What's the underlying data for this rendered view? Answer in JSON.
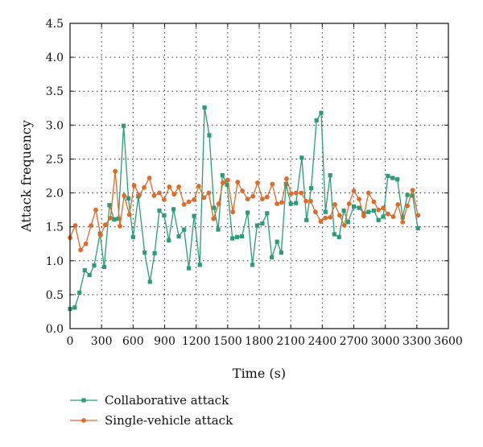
{
  "chart_data": {
    "type": "line",
    "xlabel": "Time (s)",
    "ylabel": "Attack frequency",
    "xlim": [
      0,
      3600
    ],
    "ylim": [
      0,
      4.5
    ],
    "x_ticks": [
      0,
      300,
      600,
      900,
      1200,
      1500,
      1800,
      2100,
      2400,
      2700,
      3000,
      3300,
      3600
    ],
    "y_ticks": [
      0.0,
      0.5,
      1.0,
      1.5,
      2.0,
      2.5,
      3.0,
      3.5,
      4.0,
      4.5
    ],
    "x_tick_labels": [
      "0",
      "300",
      "600",
      "900",
      "1200",
      "1500",
      "1800",
      "2100",
      "2400",
      "2700",
      "3000",
      "3300",
      "3600"
    ],
    "y_tick_labels": [
      "0.0",
      "0.5",
      "1.0",
      "1.5",
      "2.0",
      "2.5",
      "3.0",
      "3.5",
      "4.0",
      "4.5"
    ],
    "grid": true,
    "legend_position": "bottom-left",
    "series": [
      {
        "name": "Collaborative attack",
        "color": "#2a9d78",
        "marker": "square",
        "points": [
          [
            0,
            0.29
          ],
          [
            45,
            0.31
          ],
          [
            90,
            0.53
          ],
          [
            140,
            0.86
          ],
          [
            185,
            0.79
          ],
          [
            230,
            0.93
          ],
          [
            285,
            1.4
          ],
          [
            325,
            0.91
          ],
          [
            375,
            1.82
          ],
          [
            420,
            1.61
          ],
          [
            460,
            1.62
          ],
          [
            510,
            2.99
          ],
          [
            555,
            1.92
          ],
          [
            600,
            1.35
          ],
          [
            650,
            1.95
          ],
          [
            710,
            1.12
          ],
          [
            760,
            0.69
          ],
          [
            805,
            1.11
          ],
          [
            850,
            1.74
          ],
          [
            895,
            1.67
          ],
          [
            940,
            1.3
          ],
          [
            985,
            1.76
          ],
          [
            1035,
            1.36
          ],
          [
            1085,
            1.46
          ],
          [
            1130,
            0.89
          ],
          [
            1180,
            1.66
          ],
          [
            1235,
            0.94
          ],
          [
            1280,
            3.26
          ],
          [
            1325,
            2.85
          ],
          [
            1370,
            1.78
          ],
          [
            1410,
            1.46
          ],
          [
            1450,
            2.26
          ],
          [
            1495,
            2.12
          ],
          [
            1545,
            1.33
          ],
          [
            1590,
            1.35
          ],
          [
            1635,
            1.36
          ],
          [
            1690,
            1.71
          ],
          [
            1735,
            0.94
          ],
          [
            1780,
            1.52
          ],
          [
            1830,
            1.55
          ],
          [
            1875,
            1.7
          ],
          [
            1920,
            1.05
          ],
          [
            1970,
            1.28
          ],
          [
            2010,
            1.12
          ],
          [
            2055,
            2.13
          ],
          [
            2100,
            1.84
          ],
          [
            2150,
            1.85
          ],
          [
            2205,
            2.52
          ],
          [
            2250,
            1.6
          ],
          [
            2295,
            2.07
          ],
          [
            2345,
            3.07
          ],
          [
            2390,
            3.18
          ],
          [
            2430,
            1.72
          ],
          [
            2475,
            2.26
          ],
          [
            2515,
            1.39
          ],
          [
            2560,
            1.35
          ],
          [
            2605,
            1.74
          ],
          [
            2645,
            1.57
          ],
          [
            2700,
            1.8
          ],
          [
            2750,
            1.78
          ],
          [
            2795,
            1.7
          ],
          [
            2840,
            1.72
          ],
          [
            2890,
            1.74
          ],
          [
            2935,
            1.6
          ],
          [
            2980,
            1.65
          ],
          [
            3025,
            2.25
          ],
          [
            3070,
            2.22
          ],
          [
            3115,
            2.2
          ],
          [
            3165,
            1.64
          ],
          [
            3210,
            1.97
          ],
          [
            3260,
            1.96
          ],
          [
            3310,
            1.48
          ]
        ]
      },
      {
        "name": "Single-vehicle attack",
        "color": "#de6b27",
        "marker": "circle",
        "points": [
          [
            0,
            1.34
          ],
          [
            50,
            1.52
          ],
          [
            100,
            1.16
          ],
          [
            150,
            1.25
          ],
          [
            200,
            1.52
          ],
          [
            245,
            1.75
          ],
          [
            290,
            1.38
          ],
          [
            335,
            1.53
          ],
          [
            385,
            1.63
          ],
          [
            430,
            2.32
          ],
          [
            475,
            1.51
          ],
          [
            515,
            1.96
          ],
          [
            565,
            1.68
          ],
          [
            610,
            2.11
          ],
          [
            660,
            1.97
          ],
          [
            705,
            2.08
          ],
          [
            755,
            2.22
          ],
          [
            800,
            1.96
          ],
          [
            850,
            2.0
          ],
          [
            895,
            1.9
          ],
          [
            945,
            2.09
          ],
          [
            990,
            1.98
          ],
          [
            1035,
            2.09
          ],
          [
            1085,
            1.83
          ],
          [
            1130,
            1.87
          ],
          [
            1180,
            1.9
          ],
          [
            1225,
            2.1
          ],
          [
            1275,
            1.93
          ],
          [
            1320,
            2.0
          ],
          [
            1365,
            1.62
          ],
          [
            1415,
            1.84
          ],
          [
            1455,
            2.15
          ],
          [
            1500,
            2.19
          ],
          [
            1550,
            1.72
          ],
          [
            1595,
            2.16
          ],
          [
            1640,
            2.03
          ],
          [
            1690,
            1.91
          ],
          [
            1740,
            1.95
          ],
          [
            1785,
            2.15
          ],
          [
            1830,
            1.91
          ],
          [
            1875,
            1.94
          ],
          [
            1925,
            2.13
          ],
          [
            1970,
            1.84
          ],
          [
            2015,
            1.86
          ],
          [
            2060,
            2.21
          ],
          [
            2105,
            1.99
          ],
          [
            2150,
            2.0
          ],
          [
            2200,
            2.0
          ],
          [
            2245,
            1.88
          ],
          [
            2290,
            1.88
          ],
          [
            2335,
            1.72
          ],
          [
            2385,
            1.58
          ],
          [
            2430,
            1.63
          ],
          [
            2475,
            1.64
          ],
          [
            2520,
            1.83
          ],
          [
            2565,
            1.67
          ],
          [
            2610,
            1.52
          ],
          [
            2655,
            1.84
          ],
          [
            2700,
            2.03
          ],
          [
            2750,
            1.91
          ],
          [
            2795,
            1.66
          ],
          [
            2840,
            2.0
          ],
          [
            2890,
            1.87
          ],
          [
            2935,
            1.75
          ],
          [
            2980,
            1.78
          ],
          [
            3025,
            1.69
          ],
          [
            3075,
            1.65
          ],
          [
            3120,
            1.83
          ],
          [
            3165,
            1.57
          ],
          [
            3210,
            1.81
          ],
          [
            3260,
            2.04
          ],
          [
            3310,
            1.67
          ]
        ]
      }
    ]
  }
}
